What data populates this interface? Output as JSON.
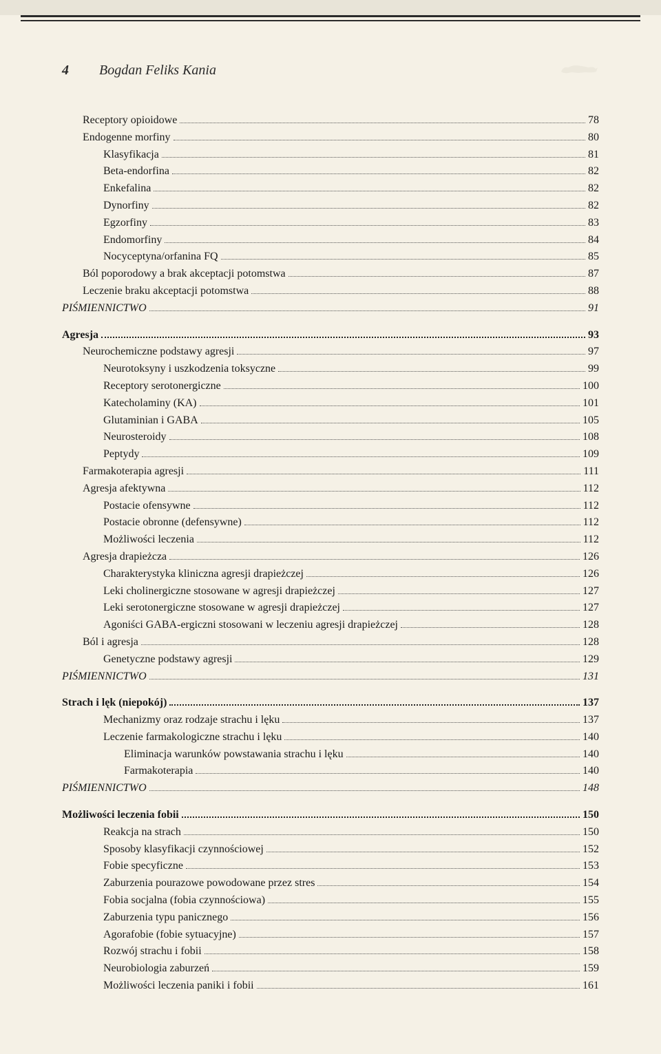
{
  "page_number": "4",
  "author": "Bogdan Feliks Kania",
  "entries": [
    {
      "label": "Receptory opioidowe",
      "page": "78",
      "indent": 1,
      "style": ""
    },
    {
      "label": "Endogenne morfiny",
      "page": "80",
      "indent": 1,
      "style": ""
    },
    {
      "label": "Klasyfikacja",
      "page": "81",
      "indent": 2,
      "style": ""
    },
    {
      "label": "Beta-endorfina",
      "page": "82",
      "indent": 2,
      "style": ""
    },
    {
      "label": "Enkefalina",
      "page": "82",
      "indent": 2,
      "style": ""
    },
    {
      "label": "Dynorfiny",
      "page": "82",
      "indent": 2,
      "style": ""
    },
    {
      "label": "Egzorfiny",
      "page": "83",
      "indent": 2,
      "style": ""
    },
    {
      "label": "Endomorfiny",
      "page": "84",
      "indent": 2,
      "style": ""
    },
    {
      "label": "Nocyceptyna/orfanina FQ",
      "page": "85",
      "indent": 2,
      "style": ""
    },
    {
      "label": "Ból poporodowy a brak akceptacji potomstwa",
      "page": "87",
      "indent": 1,
      "style": ""
    },
    {
      "label": "Leczenie braku akceptacji potomstwa",
      "page": "88",
      "indent": 1,
      "style": ""
    },
    {
      "label": "PIŚMIENNICTWO",
      "page": "91",
      "indent": 0,
      "style": "italic",
      "page_style": "italic"
    },
    {
      "label": "Agresja",
      "page": "93",
      "indent": 0,
      "style": "bold section-gap",
      "dots": "bold",
      "page_style": "bold"
    },
    {
      "label": "Neurochemiczne podstawy agresji",
      "page": "97",
      "indent": 1,
      "style": ""
    },
    {
      "label": "Neurotoksyny i uszkodzenia toksyczne",
      "page": "99",
      "indent": 2,
      "style": ""
    },
    {
      "label": "Receptory serotonergiczne",
      "page": "100",
      "indent": 2,
      "style": ""
    },
    {
      "label": "Katecholaminy (KA)",
      "page": "101",
      "indent": 2,
      "style": ""
    },
    {
      "label": "Glutaminian i GABA",
      "page": "105",
      "indent": 2,
      "style": ""
    },
    {
      "label": "Neurosteroidy",
      "page": "108",
      "indent": 2,
      "style": ""
    },
    {
      "label": "Peptydy",
      "page": "109",
      "indent": 2,
      "style": ""
    },
    {
      "label": "Farmakoterapia agresji",
      "page": "111",
      "indent": 1,
      "style": ""
    },
    {
      "label": "Agresja afektywna",
      "page": "112",
      "indent": 1,
      "style": ""
    },
    {
      "label": "Postacie ofensywne",
      "page": "112",
      "indent": 2,
      "style": ""
    },
    {
      "label": "Postacie obronne (defensywne)",
      "page": "112",
      "indent": 2,
      "style": ""
    },
    {
      "label": "Możliwości leczenia",
      "page": "112",
      "indent": 2,
      "style": ""
    },
    {
      "label": "Agresja drapieżcza",
      "page": "126",
      "indent": 1,
      "style": ""
    },
    {
      "label": "Charakterystyka kliniczna agresji drapieżczej",
      "page": "126",
      "indent": 2,
      "style": ""
    },
    {
      "label": "Leki cholinergiczne stosowane w agresji drapieżczej",
      "page": "127",
      "indent": 2,
      "style": ""
    },
    {
      "label": "Leki serotonergiczne stosowane w agresji drapieżczej",
      "page": "127",
      "indent": 2,
      "style": ""
    },
    {
      "label": "Agoniści GABA-ergiczni stosowani w leczeniu agresji drapieżczej",
      "page": "128",
      "indent": 2,
      "style": ""
    },
    {
      "label": "Ból i agresja",
      "page": "128",
      "indent": 1,
      "style": ""
    },
    {
      "label": "Genetyczne podstawy agresji",
      "page": "129",
      "indent": 2,
      "style": ""
    },
    {
      "label": "PIŚMIENNICTWO",
      "page": "131",
      "indent": 0,
      "style": "italic",
      "page_style": "italic"
    },
    {
      "label": "Strach i lęk (niepokój)",
      "page": "137",
      "indent": 0,
      "style": "bold section-gap",
      "dots": "bold",
      "page_style": "bold"
    },
    {
      "label": "Mechanizmy oraz rodzaje strachu i lęku",
      "page": "137",
      "indent": 2,
      "style": ""
    },
    {
      "label": "Leczenie farmakologiczne strachu i lęku",
      "page": "140",
      "indent": 2,
      "style": ""
    },
    {
      "label": "Eliminacja warunków powstawania strachu i lęku",
      "page": "140",
      "indent": 3,
      "style": ""
    },
    {
      "label": "Farmakoterapia",
      "page": "140",
      "indent": 3,
      "style": ""
    },
    {
      "label": "PIŚMIENNICTWO",
      "page": "148",
      "indent": 0,
      "style": "italic",
      "page_style": "italic"
    },
    {
      "label": "Możliwości leczenia fobii",
      "page": "150",
      "indent": 0,
      "style": "bold section-gap",
      "dots": "bold",
      "page_style": "bold"
    },
    {
      "label": "Reakcja na strach",
      "page": "150",
      "indent": 2,
      "style": ""
    },
    {
      "label": "Sposoby klasyfikacji czynnościowej",
      "page": "152",
      "indent": 2,
      "style": ""
    },
    {
      "label": "Fobie specyficzne",
      "page": "153",
      "indent": 2,
      "style": ""
    },
    {
      "label": "Zaburzenia pourazowe powodowane przez stres",
      "page": "154",
      "indent": 2,
      "style": ""
    },
    {
      "label": "Fobia socjalna (fobia czynnościowa)",
      "page": "155",
      "indent": 2,
      "style": ""
    },
    {
      "label": "Zaburzenia typu panicznego",
      "page": "156",
      "indent": 2,
      "style": ""
    },
    {
      "label": "Agorafobie (fobie sytuacyjne)",
      "page": "157",
      "indent": 2,
      "style": ""
    },
    {
      "label": "Rozwój strachu i fobii",
      "page": "158",
      "indent": 2,
      "style": ""
    },
    {
      "label": "Neurobiologia zaburzeń",
      "page": "159",
      "indent": 2,
      "style": ""
    },
    {
      "label": "Możliwości leczenia paniki i fobii",
      "page": "161",
      "indent": 2,
      "style": ""
    }
  ]
}
